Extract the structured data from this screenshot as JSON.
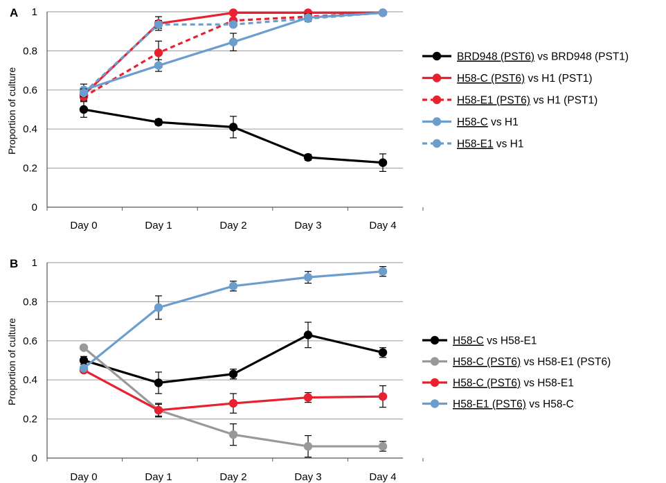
{
  "chart_data": [
    {
      "type": "line",
      "panel": "A",
      "ylabel": "Proportion of culture",
      "categories": [
        "Day 0",
        "Day 1",
        "Day 2",
        "Day 3",
        "Day 4"
      ],
      "ylim": [
        0,
        1
      ],
      "yticks": [
        "0",
        "0.2",
        "0.4",
        "0.6",
        "0.8",
        "1"
      ],
      "grid": true,
      "legend_position": "right",
      "series": [
        {
          "name": "BRD948 (PST6) vs BRD948 (PST1)",
          "underline": "BRD948 (PST6)",
          "rest": " vs BRD948 (PST1)",
          "color": "#000000",
          "dashed": false,
          "values": [
            0.5,
            0.435,
            0.41,
            0.255,
            0.228
          ],
          "errors": [
            0.04,
            0.015,
            0.055,
            0.015,
            0.045
          ]
        },
        {
          "name": "H58-C (PST6) vs H1 (PST1)",
          "underline": "H58-C (PST6)",
          "rest": " vs H1 (PST1)",
          "color": "#e8202f",
          "dashed": false,
          "values": [
            0.575,
            0.94,
            0.995,
            0.995,
            0.995
          ],
          "errors": [
            0.025,
            0.035,
            0.0,
            0.0,
            0.0
          ]
        },
        {
          "name": "H58-E1 (PST6) vs H1 (PST1)",
          "underline": "H58-E1 (PST6)",
          "rest": " vs H1 (PST1)",
          "color": "#e8202f",
          "dashed": true,
          "values": [
            0.565,
            0.79,
            0.955,
            0.975,
            0.995
          ],
          "errors": [
            0.02,
            0.06,
            0.0,
            0.0,
            0.0
          ]
        },
        {
          "name": "H58-C vs H1",
          "underline": "H58-C",
          "rest": " vs H1",
          "color": "#6b9dcd",
          "dashed": false,
          "values": [
            0.6,
            0.725,
            0.845,
            0.97,
            0.995
          ],
          "errors": [
            0.03,
            0.03,
            0.045,
            0.02,
            0.0
          ]
        },
        {
          "name": "H58-E1 vs H1",
          "underline": "H58-E1",
          "rest": " vs H1",
          "color": "#6b9dcd",
          "dashed": true,
          "values": [
            0.585,
            0.935,
            0.935,
            0.965,
            0.995
          ],
          "errors": [
            0.02,
            0.02,
            0.0,
            0.0,
            0.0
          ]
        }
      ]
    },
    {
      "type": "line",
      "panel": "B",
      "ylabel": "Proportion of culture",
      "categories": [
        "Day 0",
        "Day 1",
        "Day 2",
        "Day 3",
        "Day 4"
      ],
      "ylim": [
        0,
        1
      ],
      "yticks": [
        "0",
        "0.2",
        "0.4",
        "0.6",
        "0.8",
        "1"
      ],
      "grid": true,
      "legend_position": "right",
      "series": [
        {
          "name": "H58-C vs H58-E1",
          "underline": "H58-C",
          "rest": " vs H58-E1",
          "color": "#000000",
          "dashed": false,
          "values": [
            0.5,
            0.385,
            0.43,
            0.63,
            0.54
          ],
          "errors": [
            0.02,
            0.055,
            0.025,
            0.065,
            0.025
          ]
        },
        {
          "name": "H58-C (PST6) vs H58-E1 (PST6)",
          "underline": "H58-C (PST6)",
          "rest": " vs H58-E1 (PST6)",
          "color": "#999999",
          "dashed": false,
          "values": [
            0.565,
            0.245,
            0.12,
            0.06,
            0.06
          ],
          "errors": [
            0.0,
            0.035,
            0.055,
            0.055,
            0.025
          ]
        },
        {
          "name": "H58-C (PST6) vs H58-E1",
          "underline": "H58-C (PST6)",
          "rest": " vs H58-E1",
          "color": "#e8202f",
          "dashed": false,
          "values": [
            0.45,
            0.245,
            0.28,
            0.31,
            0.315
          ],
          "errors": [
            0.0,
            0.03,
            0.05,
            0.025,
            0.055
          ]
        },
        {
          "name": "H58-E1 (PST6) vs H58-C",
          "underline": "H58-E1 (PST6)",
          "rest": " vs H58-C",
          "color": "#6b9dcd",
          "dashed": false,
          "values": [
            0.46,
            0.77,
            0.88,
            0.925,
            0.955
          ],
          "errors": [
            0.0,
            0.06,
            0.025,
            0.03,
            0.025
          ]
        }
      ]
    }
  ]
}
